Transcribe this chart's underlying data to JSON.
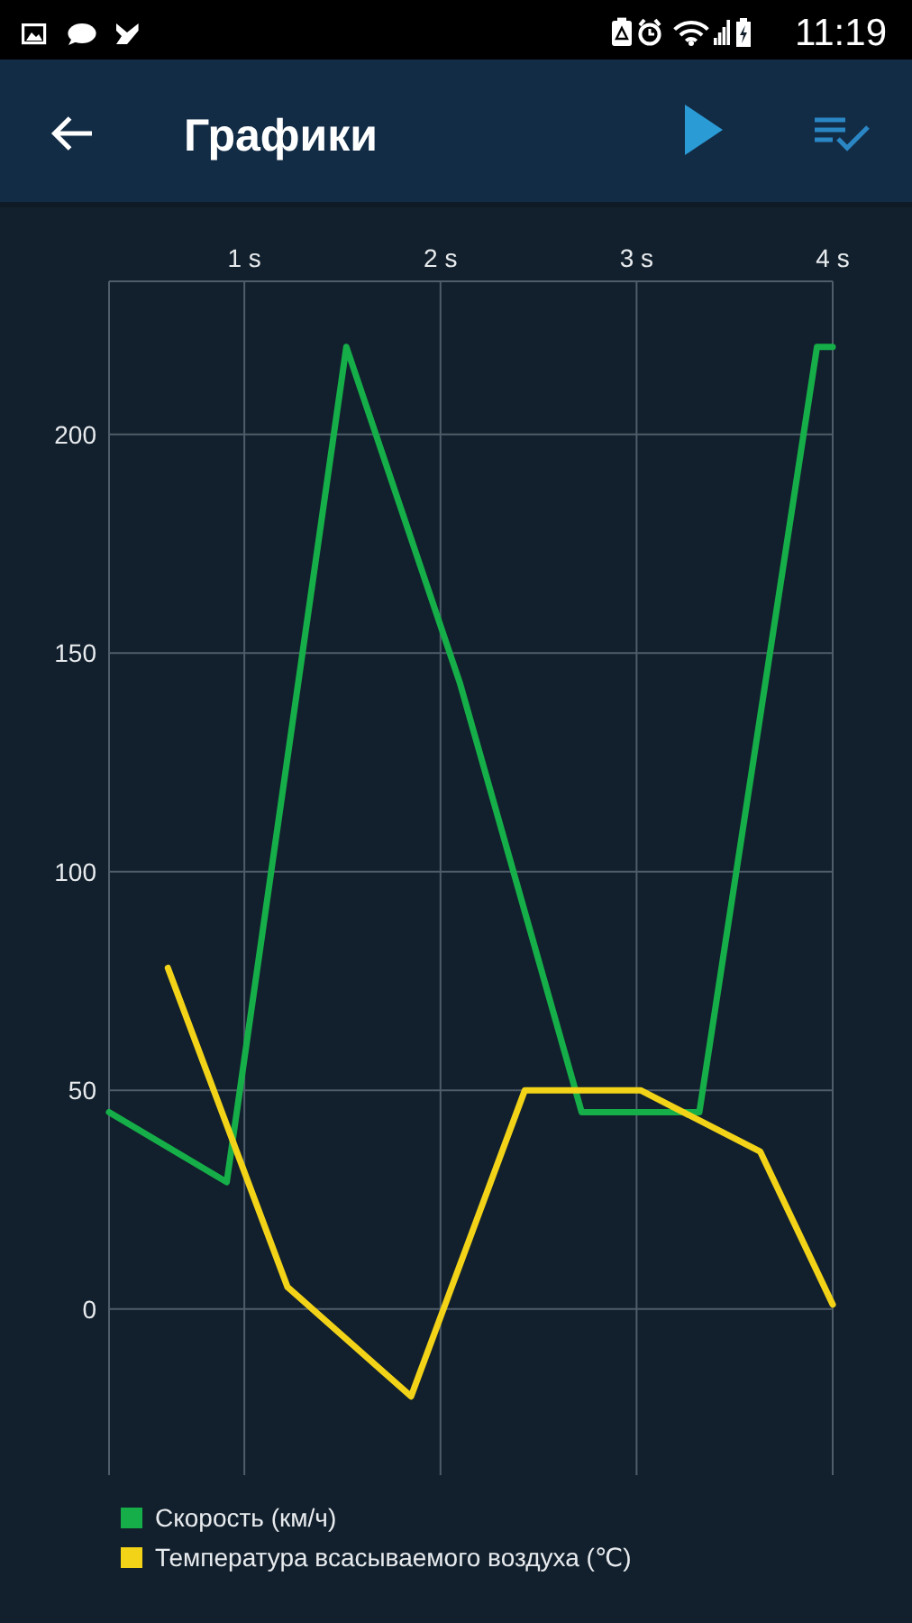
{
  "chart_data": {
    "type": "line",
    "title": "Графики",
    "annotations": [
      "11:19"
    ],
    "xlim": [
      0.31,
      4
    ],
    "xticks": [
      {
        "value": 1,
        "label": "1 s"
      },
      {
        "value": 2,
        "label": "2 s"
      },
      {
        "value": 3,
        "label": "3 s"
      },
      {
        "value": 4,
        "label": "4 s"
      }
    ],
    "ylim": [
      -38,
      235
    ],
    "yticks": [
      0,
      50,
      100,
      150,
      200
    ],
    "grid": true,
    "legend": "bottom left",
    "series": [
      {
        "name": "Скорость (км/ч)",
        "color": "#16ae48",
        "x": [
          0.31,
          0.91,
          1.52,
          2.1,
          2.72,
          3.32,
          3.92,
          4.0
        ],
        "values": [
          45,
          29,
          220,
          143,
          45,
          45,
          220,
          220
        ]
      },
      {
        "name": "Температура всасываемого воздуха (℃)",
        "color": "#f2d318",
        "x": [
          0.61,
          1.22,
          1.85,
          2.43,
          3.02,
          3.63,
          4.0
        ],
        "values": [
          78,
          5,
          -20,
          50,
          50,
          36,
          1
        ]
      }
    ]
  }
}
